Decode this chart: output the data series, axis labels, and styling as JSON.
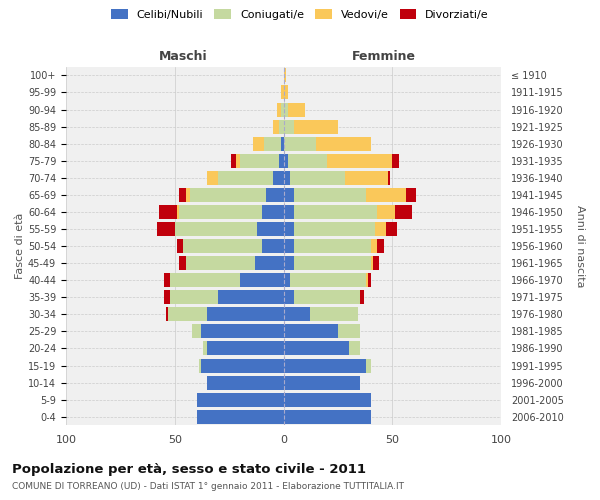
{
  "age_groups_bottom_to_top": [
    "0-4",
    "5-9",
    "10-14",
    "15-19",
    "20-24",
    "25-29",
    "30-34",
    "35-39",
    "40-44",
    "45-49",
    "50-54",
    "55-59",
    "60-64",
    "65-69",
    "70-74",
    "75-79",
    "80-84",
    "85-89",
    "90-94",
    "95-99",
    "100+"
  ],
  "birth_years_bottom_to_top": [
    "2006-2010",
    "2001-2005",
    "1996-2000",
    "1991-1995",
    "1986-1990",
    "1981-1985",
    "1976-1980",
    "1971-1975",
    "1966-1970",
    "1961-1965",
    "1956-1960",
    "1951-1955",
    "1946-1950",
    "1941-1945",
    "1936-1940",
    "1931-1935",
    "1926-1930",
    "1921-1925",
    "1916-1920",
    "1911-1915",
    "≤ 1910"
  ],
  "colors": {
    "celibi": "#4472C4",
    "coniugati": "#C5D9A0",
    "vedovi": "#FAC85A",
    "divorziati": "#C0000C"
  },
  "maschi_bottom_to_top": {
    "celibi": [
      40,
      40,
      35,
      38,
      35,
      38,
      35,
      30,
      20,
      13,
      10,
      12,
      10,
      8,
      5,
      2,
      1,
      0,
      0,
      0,
      0
    ],
    "coniugati": [
      0,
      0,
      0,
      1,
      2,
      4,
      18,
      22,
      32,
      32,
      36,
      38,
      38,
      35,
      25,
      18,
      8,
      2,
      1,
      0,
      0
    ],
    "vedovi": [
      0,
      0,
      0,
      0,
      0,
      0,
      0,
      0,
      0,
      0,
      0,
      0,
      1,
      2,
      5,
      2,
      5,
      3,
      2,
      1,
      0
    ],
    "divorziati": [
      0,
      0,
      0,
      0,
      0,
      0,
      1,
      3,
      3,
      3,
      3,
      8,
      8,
      3,
      0,
      2,
      0,
      0,
      0,
      0,
      0
    ]
  },
  "femmine_bottom_to_top": {
    "celibi": [
      40,
      40,
      35,
      38,
      30,
      25,
      12,
      5,
      3,
      5,
      5,
      5,
      5,
      5,
      3,
      2,
      0,
      0,
      0,
      0,
      0
    ],
    "coniugati": [
      0,
      0,
      0,
      2,
      5,
      10,
      22,
      30,
      35,
      35,
      35,
      37,
      38,
      33,
      25,
      18,
      15,
      5,
      2,
      0,
      0
    ],
    "vedovi": [
      0,
      0,
      0,
      0,
      0,
      0,
      0,
      0,
      1,
      1,
      3,
      5,
      8,
      18,
      20,
      30,
      25,
      20,
      8,
      2,
      1
    ],
    "divorziati": [
      0,
      0,
      0,
      0,
      0,
      0,
      0,
      2,
      1,
      3,
      3,
      5,
      8,
      5,
      1,
      3,
      0,
      0,
      0,
      0,
      0
    ]
  },
  "xlim": 100,
  "title": "Popolazione per età, sesso e stato civile - 2011",
  "subtitle": "COMUNE DI TORREANO (UD) - Dati ISTAT 1° gennaio 2011 - Elaborazione TUTTITALIA.IT",
  "xlabel_left": "Maschi",
  "xlabel_right": "Femmine",
  "ylabel": "Fasce di età",
  "ylabel_right": "Anni di nascita",
  "legend_labels": [
    "Celibi/Nubili",
    "Coniugati/e",
    "Vedovi/e",
    "Divorziati/e"
  ],
  "bg_color": "#ffffff",
  "plot_bg": "#f0f0f0"
}
